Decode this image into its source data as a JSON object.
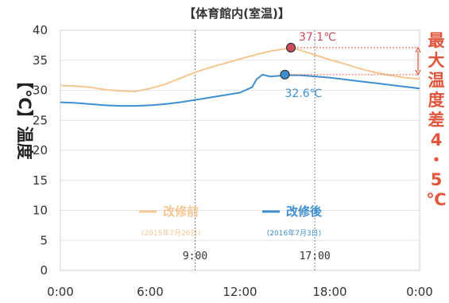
{
  "chart_data": {
    "type": "line",
    "title": "【体育館内(室温)】",
    "ylabel": "【℃】温度",
    "ylim": [
      0,
      40
    ],
    "y_ticks": [
      "0",
      "5",
      "10",
      "15",
      "20",
      "25",
      "30",
      "35",
      "40"
    ],
    "x_ticks": [
      "0:00",
      "6:00",
      "12:00",
      "18:00",
      "0:00"
    ],
    "grid": "horizontal",
    "legend_position": "bottom-center",
    "series": [
      {
        "name": "改修前",
        "sublabel": "(2015年7月26日)",
        "color": "#f3c693",
        "x": [
          0,
          1,
          2,
          3,
          4,
          5,
          6,
          7,
          8,
          9,
          10,
          11,
          12,
          13,
          14,
          15,
          15.4,
          16,
          17,
          18,
          19,
          20,
          21,
          22,
          23,
          24
        ],
        "y": [
          30.8,
          30.7,
          30.5,
          30.1,
          29.9,
          29.8,
          30.3,
          31.0,
          32.0,
          33.0,
          33.8,
          34.5,
          35.2,
          35.9,
          36.5,
          36.9,
          37.1,
          36.7,
          35.9,
          35.1,
          34.4,
          33.6,
          33.0,
          32.5,
          32.1,
          31.9
        ]
      },
      {
        "name": "改修後",
        "sublabel": "(2016年7月3日)",
        "color": "#3e8ed0",
        "x": [
          0,
          1,
          2,
          3,
          4,
          5,
          6,
          7,
          8,
          9,
          10,
          11,
          12,
          12.8,
          13.1,
          13.5,
          14,
          14.6,
          15,
          15.5,
          16,
          17,
          18,
          19,
          20,
          21,
          22,
          23,
          24
        ],
        "y": [
          28.0,
          27.9,
          27.7,
          27.5,
          27.4,
          27.4,
          27.5,
          27.7,
          28.0,
          28.4,
          28.8,
          29.2,
          29.6,
          30.5,
          31.8,
          32.6,
          32.3,
          32.4,
          32.6,
          32.5,
          32.5,
          32.3,
          32.1,
          31.8,
          31.5,
          31.2,
          30.9,
          30.6,
          30.3
        ]
      }
    ],
    "markers": [
      {
        "label": "37.1℃",
        "x": 15.4,
        "y": 37.1,
        "color": "#cf4a5c"
      },
      {
        "label": "32.6℃",
        "x": 15.0,
        "y": 32.6,
        "color": "#3e8ed0"
      }
    ],
    "vlines": [
      {
        "label": "9:00",
        "x": 9
      },
      {
        "label": "17:00",
        "x": 17
      }
    ],
    "difference_label_chars": [
      "最",
      "大",
      "温",
      "度",
      "差",
      "4",
      "・",
      "5",
      "℃"
    ],
    "difference_color": "#e0553c"
  }
}
